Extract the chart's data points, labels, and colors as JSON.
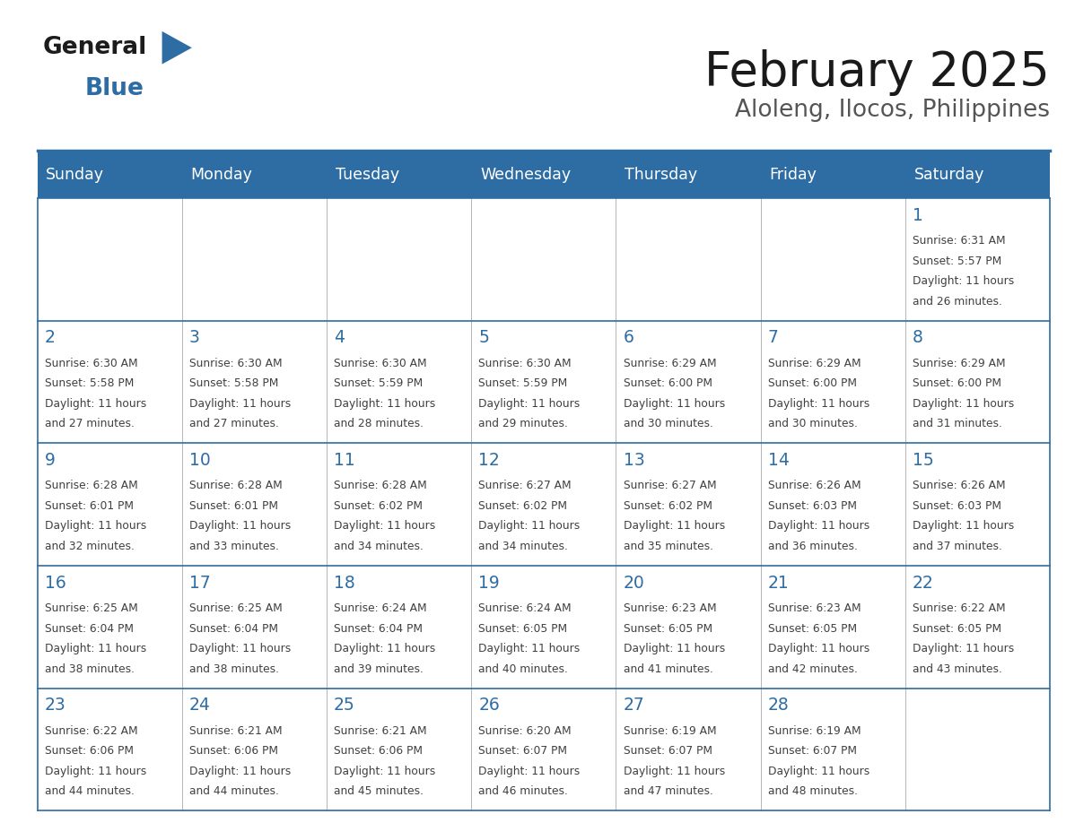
{
  "title": "February 2025",
  "subtitle": "Aloleng, Ilocos, Philippines",
  "days_of_week": [
    "Sunday",
    "Monday",
    "Tuesday",
    "Wednesday",
    "Thursday",
    "Friday",
    "Saturday"
  ],
  "header_bg": "#2E6DA4",
  "header_text": "#FFFFFF",
  "cell_bg": "#FFFFFF",
  "day_number_color": "#2E6DA4",
  "info_text_color": "#404040",
  "border_color": "#2E6DA4",
  "title_color": "#1a1a1a",
  "subtitle_color": "#555555",
  "calendar_data": [
    [
      null,
      null,
      null,
      null,
      null,
      null,
      1
    ],
    [
      2,
      3,
      4,
      5,
      6,
      7,
      8
    ],
    [
      9,
      10,
      11,
      12,
      13,
      14,
      15
    ],
    [
      16,
      17,
      18,
      19,
      20,
      21,
      22
    ],
    [
      23,
      24,
      25,
      26,
      27,
      28,
      null
    ]
  ],
  "sun_data": {
    "1": {
      "sunrise": "6:31 AM",
      "sunset": "5:57 PM",
      "daylight_h": "11 hours",
      "daylight_m": "and 26 minutes."
    },
    "2": {
      "sunrise": "6:30 AM",
      "sunset": "5:58 PM",
      "daylight_h": "11 hours",
      "daylight_m": "and 27 minutes."
    },
    "3": {
      "sunrise": "6:30 AM",
      "sunset": "5:58 PM",
      "daylight_h": "11 hours",
      "daylight_m": "and 27 minutes."
    },
    "4": {
      "sunrise": "6:30 AM",
      "sunset": "5:59 PM",
      "daylight_h": "11 hours",
      "daylight_m": "and 28 minutes."
    },
    "5": {
      "sunrise": "6:30 AM",
      "sunset": "5:59 PM",
      "daylight_h": "11 hours",
      "daylight_m": "and 29 minutes."
    },
    "6": {
      "sunrise": "6:29 AM",
      "sunset": "6:00 PM",
      "daylight_h": "11 hours",
      "daylight_m": "and 30 minutes."
    },
    "7": {
      "sunrise": "6:29 AM",
      "sunset": "6:00 PM",
      "daylight_h": "11 hours",
      "daylight_m": "and 30 minutes."
    },
    "8": {
      "sunrise": "6:29 AM",
      "sunset": "6:00 PM",
      "daylight_h": "11 hours",
      "daylight_m": "and 31 minutes."
    },
    "9": {
      "sunrise": "6:28 AM",
      "sunset": "6:01 PM",
      "daylight_h": "11 hours",
      "daylight_m": "and 32 minutes."
    },
    "10": {
      "sunrise": "6:28 AM",
      "sunset": "6:01 PM",
      "daylight_h": "11 hours",
      "daylight_m": "and 33 minutes."
    },
    "11": {
      "sunrise": "6:28 AM",
      "sunset": "6:02 PM",
      "daylight_h": "11 hours",
      "daylight_m": "and 34 minutes."
    },
    "12": {
      "sunrise": "6:27 AM",
      "sunset": "6:02 PM",
      "daylight_h": "11 hours",
      "daylight_m": "and 34 minutes."
    },
    "13": {
      "sunrise": "6:27 AM",
      "sunset": "6:02 PM",
      "daylight_h": "11 hours",
      "daylight_m": "and 35 minutes."
    },
    "14": {
      "sunrise": "6:26 AM",
      "sunset": "6:03 PM",
      "daylight_h": "11 hours",
      "daylight_m": "and 36 minutes."
    },
    "15": {
      "sunrise": "6:26 AM",
      "sunset": "6:03 PM",
      "daylight_h": "11 hours",
      "daylight_m": "and 37 minutes."
    },
    "16": {
      "sunrise": "6:25 AM",
      "sunset": "6:04 PM",
      "daylight_h": "11 hours",
      "daylight_m": "and 38 minutes."
    },
    "17": {
      "sunrise": "6:25 AM",
      "sunset": "6:04 PM",
      "daylight_h": "11 hours",
      "daylight_m": "and 38 minutes."
    },
    "18": {
      "sunrise": "6:24 AM",
      "sunset": "6:04 PM",
      "daylight_h": "11 hours",
      "daylight_m": "and 39 minutes."
    },
    "19": {
      "sunrise": "6:24 AM",
      "sunset": "6:05 PM",
      "daylight_h": "11 hours",
      "daylight_m": "and 40 minutes."
    },
    "20": {
      "sunrise": "6:23 AM",
      "sunset": "6:05 PM",
      "daylight_h": "11 hours",
      "daylight_m": "and 41 minutes."
    },
    "21": {
      "sunrise": "6:23 AM",
      "sunset": "6:05 PM",
      "daylight_h": "11 hours",
      "daylight_m": "and 42 minutes."
    },
    "22": {
      "sunrise": "6:22 AM",
      "sunset": "6:05 PM",
      "daylight_h": "11 hours",
      "daylight_m": "and 43 minutes."
    },
    "23": {
      "sunrise": "6:22 AM",
      "sunset": "6:06 PM",
      "daylight_h": "11 hours",
      "daylight_m": "and 44 minutes."
    },
    "24": {
      "sunrise": "6:21 AM",
      "sunset": "6:06 PM",
      "daylight_h": "11 hours",
      "daylight_m": "and 44 minutes."
    },
    "25": {
      "sunrise": "6:21 AM",
      "sunset": "6:06 PM",
      "daylight_h": "11 hours",
      "daylight_m": "and 45 minutes."
    },
    "26": {
      "sunrise": "6:20 AM",
      "sunset": "6:07 PM",
      "daylight_h": "11 hours",
      "daylight_m": "and 46 minutes."
    },
    "27": {
      "sunrise": "6:19 AM",
      "sunset": "6:07 PM",
      "daylight_h": "11 hours",
      "daylight_m": "and 47 minutes."
    },
    "28": {
      "sunrise": "6:19 AM",
      "sunset": "6:07 PM",
      "daylight_h": "11 hours",
      "daylight_m": "and 48 minutes."
    }
  },
  "fig_width": 11.88,
  "fig_height": 9.18,
  "dpi": 100
}
